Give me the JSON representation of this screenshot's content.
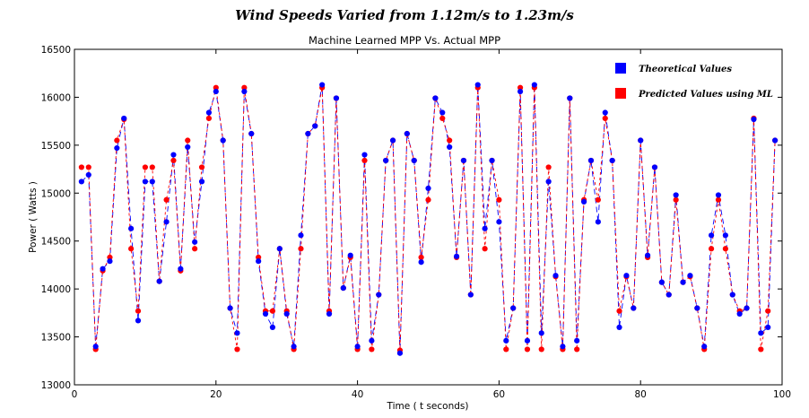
{
  "chart_data": {
    "type": "line",
    "suptitle": "Wind Speeds Varied from 1.12m/s to 1.23m/s",
    "title": "Machine Learned MPP Vs. Actual MPP",
    "xlabel": "Time ( t seconds)",
    "ylabel": "Power ( Watts )",
    "xlim": [
      0,
      100
    ],
    "ylim": [
      13000,
      16500
    ],
    "xticks": [
      0,
      20,
      40,
      60,
      80,
      100
    ],
    "yticks": [
      13000,
      13500,
      14000,
      14500,
      15000,
      15500,
      16000,
      16500
    ],
    "grid": false,
    "legend_position": "top-right",
    "x": [
      1,
      2,
      3,
      4,
      5,
      6,
      7,
      8,
      9,
      10,
      11,
      12,
      13,
      14,
      15,
      16,
      17,
      18,
      19,
      20,
      21,
      22,
      23,
      24,
      25,
      26,
      27,
      28,
      29,
      30,
      31,
      32,
      33,
      34,
      35,
      36,
      37,
      38,
      39,
      40,
      41,
      42,
      43,
      44,
      45,
      46,
      47,
      48,
      49,
      50,
      51,
      52,
      53,
      54,
      55,
      56,
      57,
      58,
      59,
      60,
      61,
      62,
      63,
      64,
      65,
      66,
      67,
      68,
      69,
      70,
      71,
      72,
      73,
      74,
      75,
      76,
      77,
      78,
      79,
      80,
      81,
      82,
      83,
      84,
      85,
      86,
      87,
      88,
      89,
      90,
      91,
      92,
      93,
      94,
      95,
      96,
      97,
      98,
      99
    ],
    "series": [
      {
        "name": "Theoretical Values",
        "color": "#0000ff",
        "values": [
          15120,
          15190,
          13400,
          14210,
          14290,
          15470,
          15780,
          14630,
          13670,
          15120,
          15120,
          14080,
          14700,
          15400,
          14210,
          15480,
          14490,
          15120,
          15840,
          16060,
          15550,
          13800,
          13540,
          16060,
          15620,
          14290,
          13740,
          13600,
          14420,
          13740,
          13400,
          14560,
          15620,
          15700,
          16130,
          13740,
          15990,
          14010,
          14350,
          13400,
          15400,
          13460,
          13940,
          15340,
          15550,
          13330,
          15620,
          15340,
          14280,
          15050,
          15990,
          15840,
          15480,
          14340,
          15340,
          13940,
          16130,
          14630,
          15340,
          14700,
          13460,
          13800,
          16060,
          13460,
          16130,
          13540,
          15120,
          14140,
          13400,
          15990,
          13460,
          14910,
          15340,
          14700,
          15840,
          15340,
          13600,
          14140,
          13800,
          15550,
          14350,
          15270,
          14070,
          13940,
          14980,
          14070,
          14140,
          13800,
          13400,
          14560,
          14980,
          14560,
          13940,
          13740,
          13800,
          15770,
          13540,
          13600,
          15550
        ]
      },
      {
        "name": "Predicted Values using ML",
        "color": "#ff0000",
        "values": [
          15270,
          15270,
          13370,
          14190,
          14330,
          15550,
          15770,
          14420,
          13770,
          15270,
          15270,
          14080,
          14930,
          15340,
          14190,
          15550,
          14420,
          15270,
          15780,
          16100,
          15550,
          13800,
          13370,
          16100,
          15620,
          14330,
          13770,
          13770,
          14420,
          13770,
          13370,
          14420,
          15620,
          15700,
          16100,
          13770,
          15990,
          14010,
          14330,
          13370,
          15340,
          13370,
          13940,
          15340,
          15550,
          13360,
          15620,
          15340,
          14330,
          14930,
          15990,
          15780,
          15550,
          14330,
          15340,
          13940,
          16100,
          14420,
          15340,
          14930,
          13370,
          13800,
          16100,
          13370,
          16100,
          13370,
          15270,
          14130,
          13370,
          15990,
          13370,
          14930,
          15340,
          14930,
          15780,
          15340,
          13770,
          14130,
          13800,
          15550,
          14330,
          15270,
          14070,
          13940,
          14930,
          14070,
          14130,
          13800,
          13370,
          14420,
          14930,
          14420,
          13940,
          13770,
          13800,
          15780,
          13370,
          13770,
          15550
        ]
      }
    ]
  }
}
